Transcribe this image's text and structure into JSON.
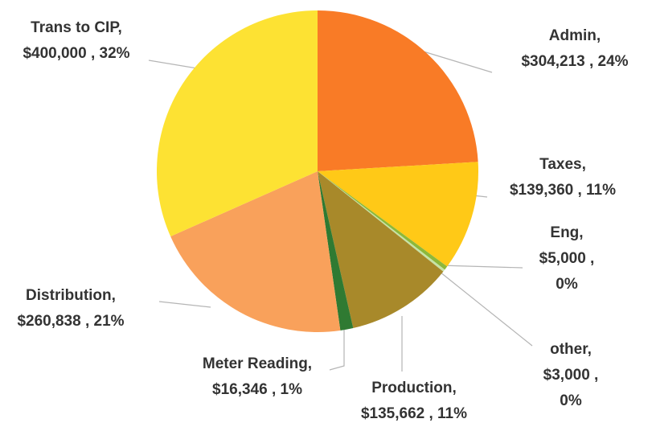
{
  "chart_data": {
    "type": "pie",
    "categories": [
      "Admin,",
      "Taxes,",
      "Eng,",
      "other,",
      "Production,",
      "Meter Reading,",
      "Distribution,",
      "Trans to CIP,"
    ],
    "values": [
      304213,
      139360,
      5000,
      3000,
      135662,
      16346,
      260838,
      400000
    ],
    "value_labels": [
      "$304,213 , 24%",
      "$139,360 , 11%",
      "$5,000 , 0%",
      "$3,000 , 0%",
      "$135,662 , 11%",
      "$16,346 , 1%",
      "$260,838 , 21%",
      "$400,000 , 32%"
    ],
    "colors": [
      "#f97b26",
      "#ffc917",
      "#8db83a",
      "#c6e3a6",
      "#a8892a",
      "#2f7a32",
      "#f9a15b",
      "#fde233"
    ]
  }
}
